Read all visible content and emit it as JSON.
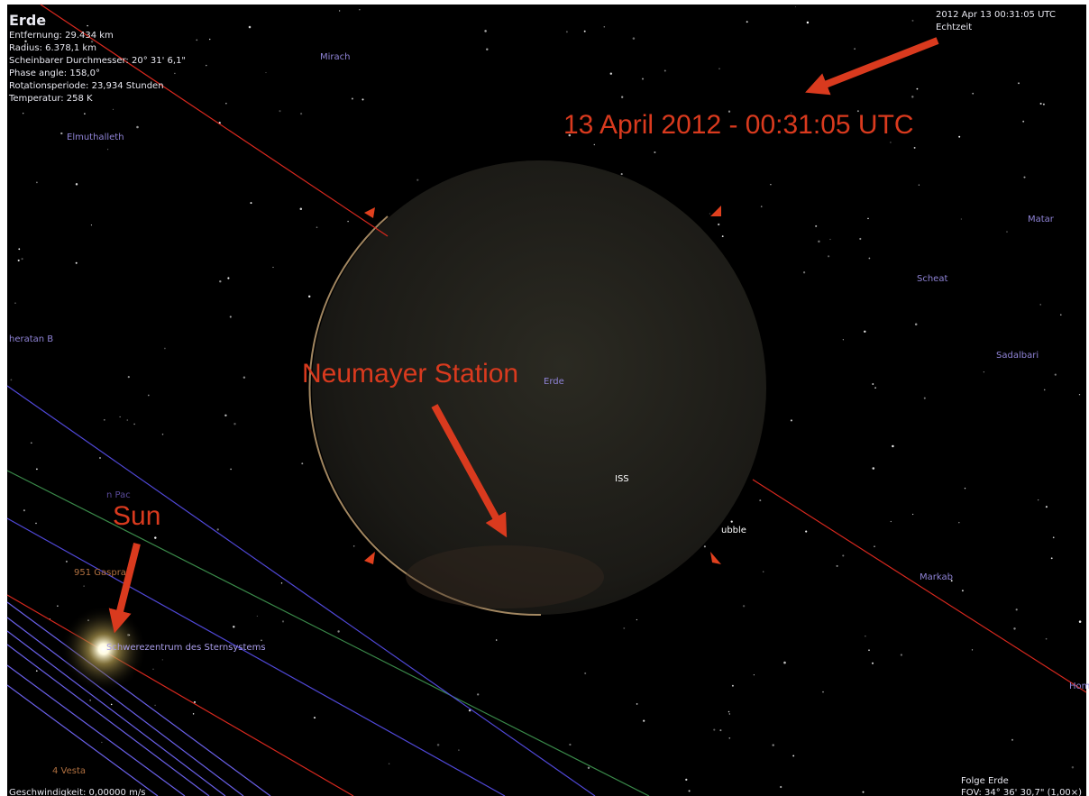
{
  "info": {
    "title": "Erde",
    "lines": [
      "Entfernung: 29.434 km",
      "Radius: 6.378,1 km",
      "Scheinbarer Durchmesser: 20° 31' 6,1\"",
      "Phase angle: 158,0°",
      "Rotationsperiode: 23,934 Stunden",
      "Temperatur: 258 K"
    ]
  },
  "time": {
    "date": "2012 Apr 13 00:31:05 UTC",
    "mode": "Echtzeit"
  },
  "status": {
    "follow": "Folge Erde",
    "fov": "FOV: 34° 36' 30,7\" (1,00×)",
    "speed": "Geschwindigkeit: 0,00000 m/s"
  },
  "labels": {
    "mirach": "Mirach",
    "elmuthalleth": "Elmuthalleth",
    "matar": "Matar",
    "scheat": "Scheat",
    "sheratan": "heratan B",
    "sadalbari": "Sadalbari",
    "earth": "Erde",
    "iss": "ISS",
    "hubble": "ubble",
    "markab": "Markab",
    "hom": "Hom",
    "pac": "n Pac",
    "gaspra": "951 Gaspra",
    "barycenter": "Schwerezentrum des Sternsystems",
    "vesta": "4 Vesta"
  },
  "annotations": {
    "datetime": "13 April 2012 - 00:31:05 UTC",
    "neumayer": "Neumayer Station",
    "sun": "Sun"
  }
}
